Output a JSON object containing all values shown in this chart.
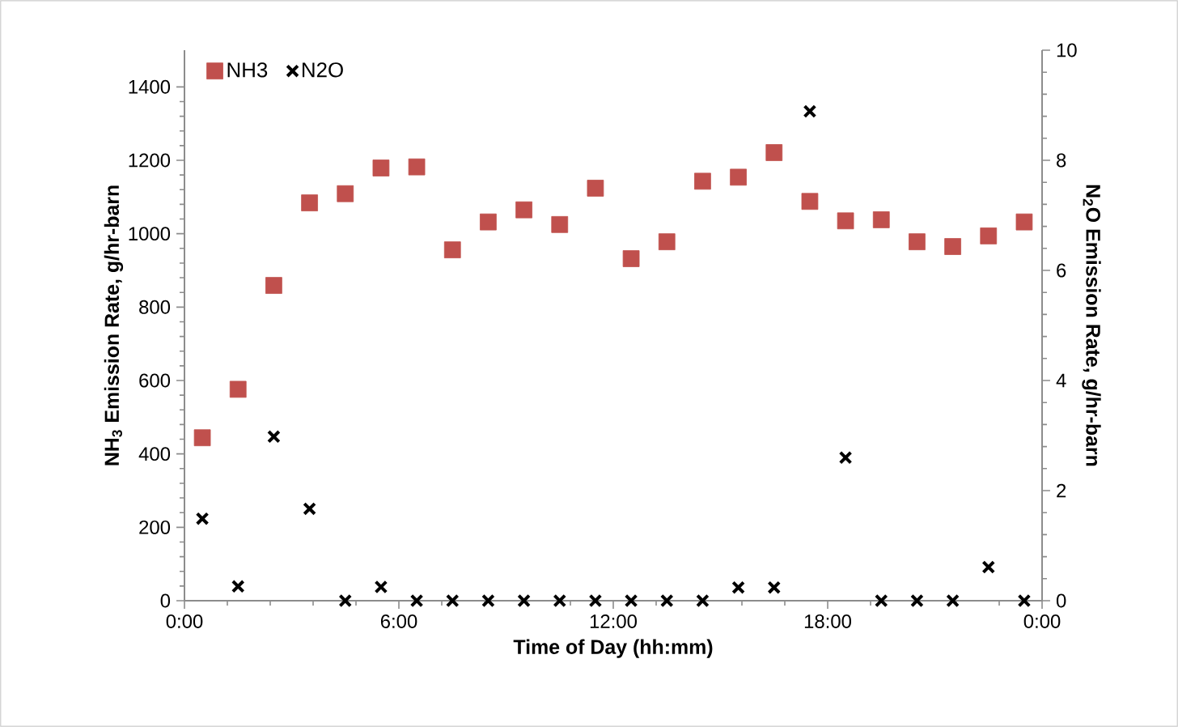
{
  "chart_data": {
    "type": "scatter",
    "xlabel": "Time of Day (hh:mm)",
    "ylabel": "**NH$_{3}$ Emission Rate, g/hr-barn**",
    "y2label": "**N$_{2}$O Emission Rate, g/hr-barn**",
    "x": [
      0.5,
      1.5,
      2.5,
      3.5,
      4.5,
      5.5,
      6.5,
      7.5,
      8.5,
      9.5,
      10.5,
      11.5,
      12.5,
      13.5,
      14.5,
      15.5,
      16.5,
      17.5,
      18.5,
      19.5,
      20.5,
      21.5,
      22.5,
      23.5
    ],
    "series": [
      {
        "name": "NH3",
        "color": "#c0504d",
        "marker": "square",
        "values": [
          444,
          576,
          859,
          1084,
          1109,
          1179,
          1182,
          956,
          1032,
          1065,
          1025,
          1124,
          932,
          978,
          1143,
          1154,
          1221,
          1088,
          1035,
          1038,
          978,
          965,
          994,
          1032
        ]
      },
      {
        "name": "N2O",
        "color": "#000000",
        "marker": "cross",
        "axis": "y2",
        "values": [
          1.49,
          0.26,
          2.98,
          1.67,
          0,
          0.25,
          0,
          0,
          0,
          0,
          0,
          0,
          0,
          0,
          0,
          0.24,
          0.24,
          8.89,
          2.6,
          0,
          0,
          0,
          0.61,
          0
        ]
      }
    ],
    "xlim": [
      0,
      24
    ],
    "xticks": [
      {
        "value": 0,
        "label": "0:00"
      },
      {
        "value": 6,
        "label": "6:00"
      },
      {
        "value": 12,
        "label": "12:00"
      },
      {
        "value": 18,
        "label": "18:00"
      },
      {
        "value": 24,
        "label": "0:00"
      }
    ],
    "ylim": [
      0,
      1500
    ],
    "yticks": [
      0,
      200,
      400,
      600,
      800,
      1000,
      1200,
      1400
    ],
    "y2lim": [
      0,
      10
    ],
    "y2ticks": [
      0,
      2,
      4,
      6,
      8,
      10
    ],
    "grid": false,
    "legend": "top left"
  }
}
